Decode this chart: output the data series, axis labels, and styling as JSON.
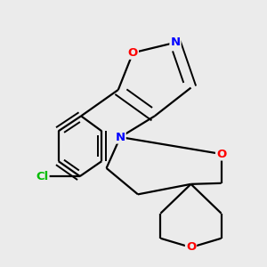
{
  "background_color": "#ebebeb",
  "bond_color": "#000000",
  "atom_colors": {
    "O": "#ff0000",
    "N": "#0000ff",
    "Cl": "#00bb00",
    "C": "#000000"
  },
  "figsize": [
    3.0,
    3.0
  ],
  "dpi": 100
}
